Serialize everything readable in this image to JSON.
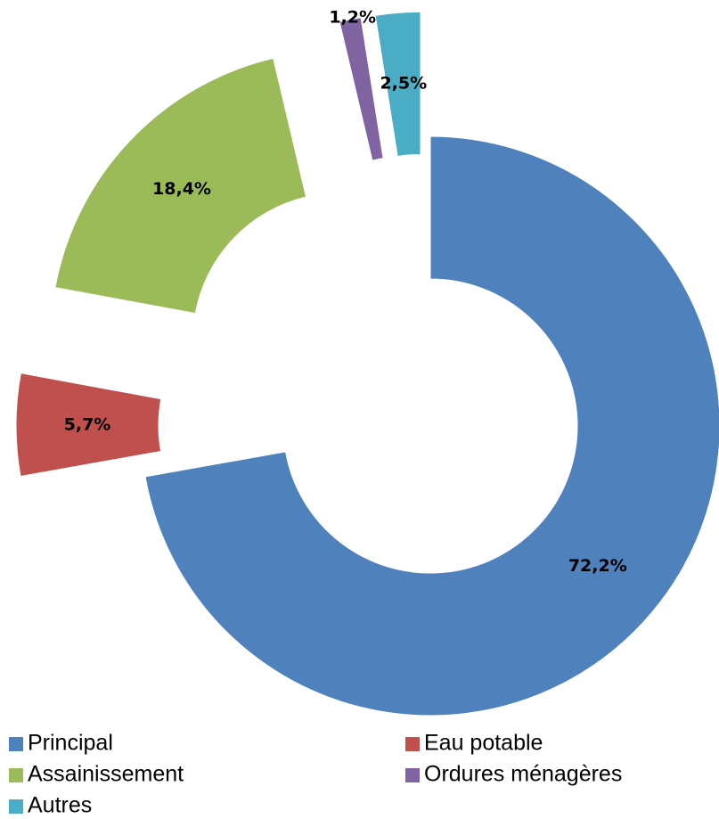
{
  "chart_data": {
    "type": "donut",
    "categories": [
      "Principal",
      "Eau potable",
      "Assainissement",
      "Ordures ménagères",
      "Autres"
    ],
    "values": [
      72.2,
      5.7,
      18.4,
      1.2,
      2.5
    ],
    "value_labels": [
      "72,2%",
      "5,7%",
      "18,4%",
      "1,2%",
      "2,5%"
    ],
    "colors": [
      "#4f81bd",
      "#c0504d",
      "#9bbb59",
      "#8064a2",
      "#4bacc6"
    ],
    "exploded": [
      false,
      true,
      true,
      true,
      true
    ],
    "legend": "bottom"
  }
}
